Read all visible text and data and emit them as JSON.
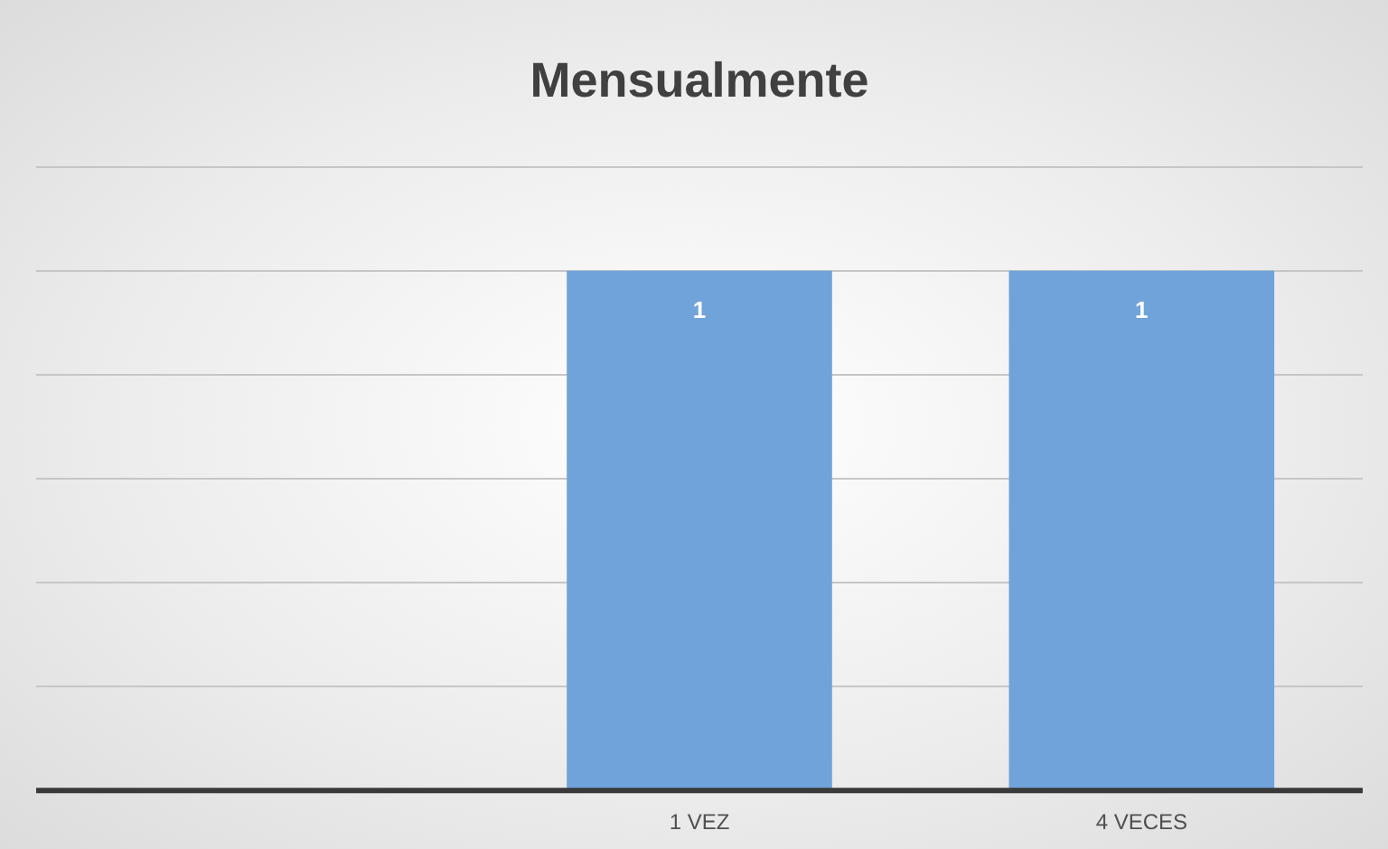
{
  "chart_data": {
    "type": "bar",
    "title": "Mensualmente",
    "categories": [
      null,
      "1 VEZ",
      "4 VECES"
    ],
    "values": [
      null,
      1,
      1
    ],
    "color": "#6fa3d9",
    "ylim": [
      0,
      1.2
    ],
    "yticks": [
      {
        "value": 0,
        "label": null
      },
      {
        "value": 0.2,
        "label": null
      },
      {
        "value": 0.4,
        "label": null
      },
      {
        "value": 0.6,
        "label": null
      },
      {
        "value": 0.8,
        "label": null
      },
      {
        "value": 1,
        "label": null
      },
      {
        "value": 1.2,
        "label": null
      }
    ],
    "grid": "y",
    "tick_labels": "x",
    "data_labels": true,
    "legend": false
  }
}
